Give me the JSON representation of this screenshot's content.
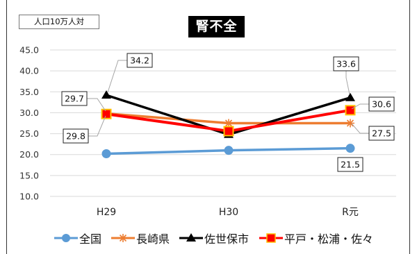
{
  "chart_data": {
    "type": "line",
    "title": "腎不全",
    "unit_label": "人口10万人対",
    "categories": [
      "H29",
      "H30",
      "R元"
    ],
    "y_ticks": [
      "45.0",
      "40.0",
      "35.0",
      "30.0",
      "25.0",
      "20.0",
      "15.0",
      "10.0"
    ],
    "ylim": [
      10,
      45
    ],
    "grid": true,
    "legend_position": "bottom",
    "series": [
      {
        "name": "全国",
        "values": [
          20.2,
          21.0,
          21.5
        ],
        "color": "#5B9BD5",
        "marker": "circle"
      },
      {
        "name": "長崎県",
        "values": [
          29.8,
          27.5,
          27.5
        ],
        "color": "#ED7D31",
        "marker": "star"
      },
      {
        "name": "佐世保市",
        "values": [
          34.2,
          24.8,
          33.6
        ],
        "color": "#000000",
        "marker": "triangle"
      },
      {
        "name": "平戸・松浦・佐々",
        "values": [
          29.7,
          25.6,
          30.6
        ],
        "color": "#FF0000",
        "marker": "square"
      }
    ],
    "data_labels": [
      {
        "text": "34.2",
        "series": 2,
        "point": 0
      },
      {
        "text": "29.7",
        "series": 3,
        "point": 0
      },
      {
        "text": "29.8",
        "series": 1,
        "point": 0
      },
      {
        "text": "33.6",
        "series": 2,
        "point": 2
      },
      {
        "text": "30.6",
        "series": 3,
        "point": 2
      },
      {
        "text": "27.5",
        "series": 1,
        "point": 2
      },
      {
        "text": "21.5",
        "series": 0,
        "point": 2
      }
    ]
  }
}
